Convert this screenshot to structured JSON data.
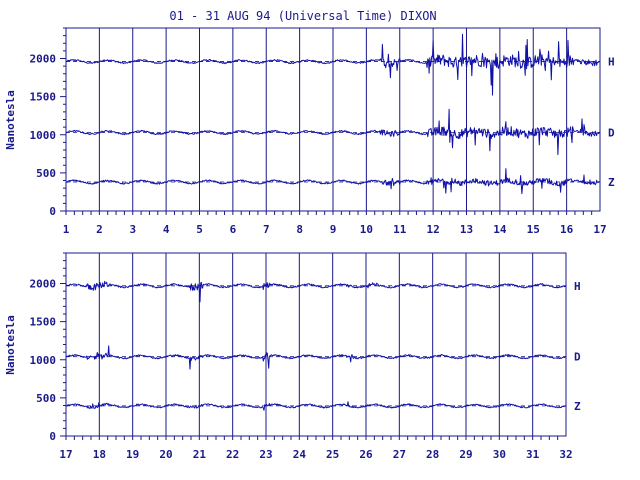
{
  "title": "01 - 31 AUG 94 (Universal Time) DIXON",
  "colors": {
    "ink": "#1a1a8c",
    "trace": "#1010a8",
    "background": "#ffffff"
  },
  "chart_data": [
    {
      "type": "line",
      "ylabel": "Nanotesla",
      "xlim": [
        1,
        17
      ],
      "ylim": [
        0,
        2400
      ],
      "ytick_labels": [
        "0",
        "500",
        "1000",
        "1500",
        "2000"
      ],
      "xtick_labels": [
        "1",
        "2",
        "3",
        "4",
        "5",
        "6",
        "7",
        "8",
        "9",
        "10",
        "11",
        "12",
        "13",
        "14",
        "15",
        "16",
        "17"
      ],
      "grid": "vertical",
      "series": [
        {
          "name": "H",
          "baseline": 1960,
          "disturbance": [
            [
              10.4,
              11.0,
              300
            ],
            [
              11.8,
              16.2,
              450
            ],
            [
              16.4,
              16.9,
              250
            ]
          ]
        },
        {
          "name": "D",
          "baseline": 1030,
          "disturbance": [
            [
              10.4,
              11.0,
              200
            ],
            [
              11.8,
              16.2,
              350
            ],
            [
              16.4,
              16.9,
              200
            ]
          ]
        },
        {
          "name": "Z",
          "baseline": 380,
          "disturbance": [
            [
              10.4,
              11.0,
              180
            ],
            [
              11.8,
              16.2,
              200
            ],
            [
              16.4,
              16.9,
              120
            ]
          ]
        }
      ]
    },
    {
      "type": "line",
      "ylabel": "Nanotesla",
      "xlim": [
        17,
        32
      ],
      "ylim": [
        0,
        2400
      ],
      "ytick_labels": [
        "0",
        "500",
        "1000",
        "1500",
        "2000"
      ],
      "xtick_labels": [
        "17",
        "18",
        "19",
        "20",
        "21",
        "22",
        "23",
        "24",
        "25",
        "26",
        "27",
        "28",
        "29",
        "30",
        "31",
        "32"
      ],
      "grid": "vertical",
      "series": [
        {
          "name": "H",
          "baseline": 1970,
          "disturbance": [
            [
              17.6,
              18.3,
              250
            ],
            [
              20.7,
              21.1,
              300
            ],
            [
              22.9,
              23.1,
              250
            ],
            [
              25.4,
              25.6,
              150
            ],
            [
              26.0,
              26.4,
              120
            ]
          ]
        },
        {
          "name": "D",
          "baseline": 1040,
          "disturbance": [
            [
              17.6,
              18.3,
              150
            ],
            [
              20.7,
              21.1,
              200
            ],
            [
              22.9,
              23.1,
              300
            ],
            [
              25.4,
              25.6,
              100
            ]
          ]
        },
        {
          "name": "Z",
          "baseline": 395,
          "disturbance": [
            [
              17.6,
              18.3,
              100
            ],
            [
              20.7,
              21.1,
              120
            ],
            [
              22.9,
              23.1,
              150
            ],
            [
              25.4,
              25.6,
              80
            ]
          ]
        }
      ]
    }
  ]
}
